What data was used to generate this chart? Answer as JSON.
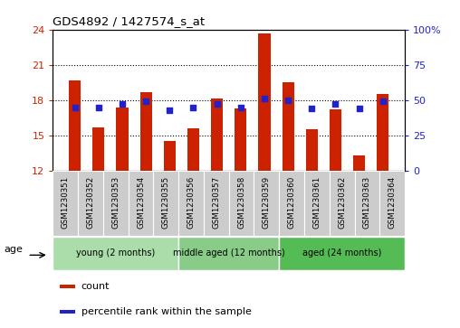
{
  "title": "GDS4892 / 1427574_s_at",
  "samples": [
    "GSM1230351",
    "GSM1230352",
    "GSM1230353",
    "GSM1230354",
    "GSM1230355",
    "GSM1230356",
    "GSM1230357",
    "GSM1230358",
    "GSM1230359",
    "GSM1230360",
    "GSM1230361",
    "GSM1230362",
    "GSM1230363",
    "GSM1230364"
  ],
  "count_values": [
    19.7,
    15.7,
    17.4,
    18.7,
    14.5,
    15.6,
    18.1,
    17.3,
    23.7,
    19.5,
    15.5,
    17.2,
    13.3,
    18.5
  ],
  "percentile_values": [
    45,
    45,
    47,
    49,
    43,
    45,
    47,
    45,
    51,
    50,
    44,
    47,
    44,
    49
  ],
  "ylim_left": [
    12,
    24
  ],
  "ylim_right": [
    0,
    100
  ],
  "yticks_left": [
    12,
    15,
    18,
    21,
    24
  ],
  "yticks_right": [
    0,
    25,
    50,
    75,
    100
  ],
  "bar_color": "#CC2200",
  "dot_color": "#2222CC",
  "bar_width": 0.5,
  "groups": [
    {
      "label": "young (2 months)",
      "start": 0,
      "end": 4
    },
    {
      "label": "middle aged (12 months)",
      "start": 5,
      "end": 8
    },
    {
      "label": "aged (24 months)",
      "start": 9,
      "end": 13
    }
  ],
  "group_colors": [
    "#aaddaa",
    "#88cc88",
    "#55bb55"
  ],
  "xlabel_age": "age",
  "legend_count": "count",
  "legend_percentile": "percentile rank within the sample"
}
